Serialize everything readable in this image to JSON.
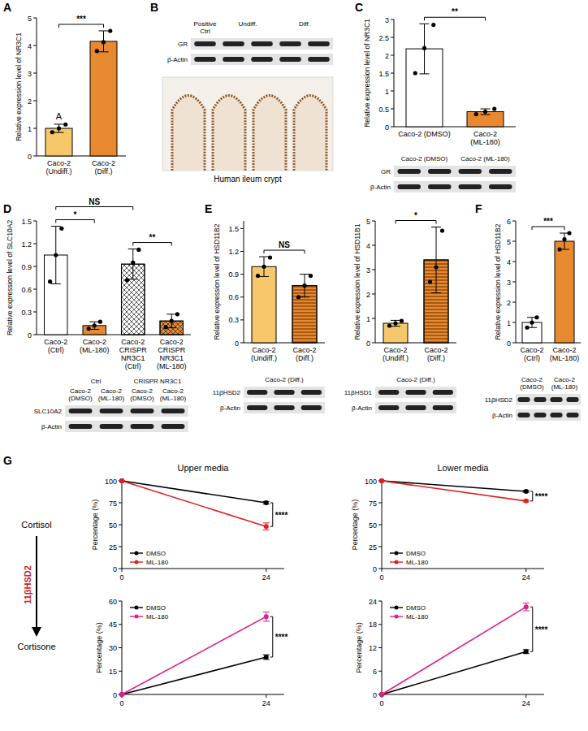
{
  "panels": [
    "A",
    "B",
    "C",
    "D",
    "E",
    "F",
    "G"
  ],
  "chart_data": [
    {
      "type": "bar",
      "ylabel": "Relative expression level of NR3C1",
      "categories": [
        "Caco-2 (Undiff.)",
        "Caco-2 (Diff.)"
      ],
      "values": [
        1.0,
        4.15
      ],
      "errors": [
        0.15,
        0.38
      ],
      "points": [
        [
          0.86,
          1.0,
          1.14
        ],
        [
          3.8,
          4.12,
          4.53
        ]
      ],
      "colors": [
        "#f6c86b",
        "#e8892f"
      ],
      "ylim": [
        0,
        5
      ],
      "yticks": [
        0,
        1,
        2,
        3,
        4,
        5
      ],
      "annotations": [
        {
          "text": "A",
          "category": 0
        },
        {
          "text": "***",
          "from": 0,
          "to": 1
        }
      ]
    },
    {
      "type": "bar",
      "ylabel": "Relative expression level of NR3C1",
      "categories": [
        "Caco-2 (DMSO)",
        "Caco-2 (ML-180)"
      ],
      "values": [
        2.18,
        0.42
      ],
      "errors": [
        0.7,
        0.08
      ],
      "points": [
        [
          1.5,
          2.2,
          2.85
        ],
        [
          0.35,
          0.42,
          0.5
        ]
      ],
      "colors": [
        "#ffffff",
        "#e8892f"
      ],
      "ylim": [
        0,
        3
      ],
      "yticks": [
        0,
        0.5,
        1,
        1.5,
        2,
        2.5,
        3
      ],
      "annotations": [
        {
          "text": "**",
          "from": 0,
          "to": 1
        }
      ]
    },
    {
      "type": "bar",
      "ylabel": "Relative expression level of SLC10A2",
      "categories": [
        "Caco-2 (Ctrl)",
        "Caco-2 (ML-180)",
        "Caco-2 CRISPR NR3C1 (Ctrl)",
        "Caco-2 CRISPR NR3C1 (ML-180)"
      ],
      "values": [
        1.05,
        0.12,
        0.93,
        0.18
      ],
      "errors": [
        0.38,
        0.05,
        0.2,
        0.09
      ],
      "points": [
        [
          0.7,
          1.05,
          1.4
        ],
        [
          0.08,
          0.12,
          0.17
        ],
        [
          0.72,
          0.95,
          1.12
        ],
        [
          0.1,
          0.18,
          0.27
        ]
      ],
      "colors": [
        "#ffffff",
        "#e8892f",
        "#ffffff",
        "#e8892f"
      ],
      "ylim": [
        0,
        1.5
      ],
      "yticks": [
        0,
        0.3,
        0.6,
        0.9,
        1.2,
        1.5
      ],
      "annotations": [
        {
          "text": "*",
          "from": 0,
          "to": 1
        },
        {
          "text": "**",
          "from": 2,
          "to": 3
        },
        {
          "text": "NS",
          "from": 0,
          "to": 2
        }
      ]
    },
    {
      "type": "bar",
      "ylabel": "Relative expression level of HSD11B2",
      "categories": [
        "Caco-2 (Undiff.)",
        "Caco-2 (Diff.)"
      ],
      "values": [
        1.0,
        0.75
      ],
      "errors": [
        0.13,
        0.15
      ],
      "points": [
        [
          0.88,
          1.0,
          1.12
        ],
        [
          0.6,
          0.75,
          0.88
        ]
      ],
      "colors": [
        "#f6c86b",
        "#e8892f"
      ],
      "ylim": [
        0,
        1.6
      ],
      "yticks": [
        0,
        0.3,
        0.6,
        0.9,
        1.2,
        1.5
      ],
      "annotations": [
        {
          "text": "NS",
          "from": 0,
          "to": 1
        }
      ]
    },
    {
      "type": "bar",
      "ylabel": "Relative expression level of HSD11B1",
      "categories": [
        "Caco-2 (Undiff.)",
        "Caco-2 (Diff.)"
      ],
      "values": [
        0.8,
        3.4
      ],
      "errors": [
        0.12,
        1.35
      ],
      "points": [
        [
          0.7,
          0.8,
          0.9
        ],
        [
          2.5,
          3.1,
          4.6
        ]
      ],
      "colors": [
        "#f6c86b",
        "#e8892f"
      ],
      "ylim": [
        0,
        5
      ],
      "yticks": [
        0,
        1,
        2,
        3,
        4,
        5
      ],
      "annotations": [
        {
          "text": "*",
          "from": 0,
          "to": 1
        }
      ]
    },
    {
      "type": "bar",
      "ylabel": "Relative expression level of HSD11B2",
      "categories": [
        "Caco-2 (Ctrl)",
        "Caco-2 (ML-180)"
      ],
      "values": [
        1.0,
        5.0
      ],
      "errors": [
        0.25,
        0.4
      ],
      "points": [
        [
          0.75,
          1.0,
          1.25
        ],
        [
          4.6,
          5.1,
          5.4
        ]
      ],
      "colors": [
        "#ffffff",
        "#e8892f"
      ],
      "ylim": [
        0,
        6
      ],
      "yticks": [
        0,
        1,
        2,
        3,
        4,
        5,
        6
      ],
      "annotations": [
        {
          "text": "***",
          "from": 0,
          "to": 1
        }
      ]
    },
    {
      "type": "line",
      "title": "Upper media",
      "ylabel": "Percentage (%)",
      "x": [
        0,
        24
      ],
      "xlim": [
        0,
        27
      ],
      "xticks": [
        0,
        24
      ],
      "ylim": [
        0,
        100
      ],
      "yticks": [
        0,
        25,
        50,
        75,
        100
      ],
      "legend": "lower-left",
      "series": [
        {
          "name": "DMSO",
          "color": "#000000",
          "marker": "circle",
          "values": [
            100,
            75
          ],
          "errors": [
            0,
            1.5
          ]
        },
        {
          "name": "ML-180",
          "color": "#e02020",
          "marker": "circle",
          "values": [
            100,
            48
          ],
          "errors": [
            0,
            4
          ]
        }
      ],
      "annotations": [
        {
          "text": "****"
        }
      ]
    },
    {
      "type": "line",
      "title": "Lower media",
      "ylabel": "Percentage (%)",
      "x": [
        0,
        24
      ],
      "xlim": [
        0,
        27
      ],
      "xticks": [
        0,
        24
      ],
      "ylim": [
        0,
        100
      ],
      "yticks": [
        0,
        25,
        50,
        75,
        100
      ],
      "legend": "lower-left",
      "series": [
        {
          "name": "DMSO",
          "color": "#000000",
          "marker": "circle",
          "values": [
            100,
            88
          ],
          "errors": [
            0,
            1
          ]
        },
        {
          "name": "ML-180",
          "color": "#e02020",
          "marker": "circle",
          "values": [
            100,
            77
          ],
          "errors": [
            0,
            1
          ]
        }
      ],
      "annotations": [
        {
          "text": "****"
        }
      ]
    },
    {
      "type": "line",
      "ylabel": "Percentage (%)",
      "x": [
        0,
        24
      ],
      "xlim": [
        0,
        27
      ],
      "xticks": [
        0,
        24
      ],
      "ylim": [
        0,
        60
      ],
      "yticks": [
        0,
        15,
        30,
        45,
        60
      ],
      "legend": "upper-left",
      "series": [
        {
          "name": "DMSO",
          "color": "#000000",
          "marker": "circle",
          "values": [
            0,
            24
          ],
          "errors": [
            0,
            1.5
          ]
        },
        {
          "name": "ML-180",
          "color": "#e0208a",
          "marker": "circle",
          "values": [
            0,
            50
          ],
          "errors": [
            0,
            3
          ]
        }
      ],
      "annotations": [
        {
          "text": "****"
        }
      ]
    },
    {
      "type": "line",
      "ylabel": "Percentage (%)",
      "x": [
        0,
        24
      ],
      "xlim": [
        0,
        27
      ],
      "xticks": [
        0,
        24
      ],
      "ylim": [
        0,
        24
      ],
      "yticks": [
        0,
        6,
        12,
        18,
        24
      ],
      "legend": "upper-left",
      "series": [
        {
          "name": "DMSO",
          "color": "#000000",
          "marker": "circle",
          "values": [
            0,
            11
          ],
          "errors": [
            0,
            0.5
          ]
        },
        {
          "name": "ML-180",
          "color": "#e0208a",
          "marker": "circle",
          "values": [
            0,
            22.5
          ],
          "errors": [
            0,
            1
          ]
        }
      ],
      "annotations": [
        {
          "text": "****"
        }
      ]
    }
  ],
  "blots": [
    {
      "lanes": 5,
      "headers": [
        [
          {
            "text": "Positive Ctrl",
            "lanes": [
              0,
              0
            ]
          },
          {
            "text": "Undiff.",
            "lanes": [
              1,
              2
            ]
          },
          {
            "text": "Diff.",
            "lanes": [
              3,
              4
            ]
          }
        ]
      ],
      "rows": [
        "GR",
        "β-Actin"
      ]
    },
    {
      "lanes": 4,
      "headers": [
        [
          {
            "text": "Caco-2 (DMSO)",
            "lanes": [
              0,
              1
            ]
          },
          {
            "text": "Caco-2 (ML-180)",
            "lanes": [
              2,
              3
            ]
          }
        ]
      ],
      "rows": [
        "GR",
        "β-Actin"
      ]
    },
    {
      "lanes": 4,
      "headers": [
        [
          {
            "text": "Ctrl",
            "lanes": [
              0,
              1
            ]
          },
          {
            "text": "CRISPR NR3C1",
            "lanes": [
              2,
              3
            ]
          }
        ],
        [
          {
            "text": "Caco-2 (DMSO)",
            "lanes": [
              0,
              0
            ]
          },
          {
            "text": "Caco-2 (ML-180)",
            "lanes": [
              1,
              1
            ]
          },
          {
            "text": "Caco-2 (DMSO)",
            "lanes": [
              2,
              2
            ]
          },
          {
            "text": "Caco-2 (ML-180)",
            "lanes": [
              3,
              3
            ]
          }
        ]
      ],
      "rows": [
        "SLC10A2",
        "β-Actin"
      ]
    },
    {
      "lanes": 3,
      "headers": [
        [
          {
            "text": "Caco-2 (Diff.)",
            "lanes": [
              0,
              2
            ]
          }
        ]
      ],
      "rows": [
        "11βHSD2",
        "β-Actin"
      ]
    },
    {
      "lanes": 3,
      "headers": [
        [
          {
            "text": "Caco-2 (Diff.)",
            "lanes": [
              0,
              2
            ]
          }
        ]
      ],
      "rows": [
        "11βHSD1",
        "β-Actin"
      ]
    },
    {
      "lanes": 4,
      "headers": [
        [
          {
            "text": "Caco-2 (DMSO)",
            "lanes": [
              0,
              1
            ]
          },
          {
            "text": "Caco-2 (ML-180)",
            "lanes": [
              2,
              3
            ]
          }
        ]
      ],
      "rows": [
        "11βHSD2",
        "β-Actin"
      ]
    }
  ],
  "ihc": {
    "caption": "Human ileum crypt"
  },
  "panel_g": {
    "rows": [
      "Cortisol",
      "Cortisone"
    ],
    "arrow_label": "11βHSD2"
  }
}
